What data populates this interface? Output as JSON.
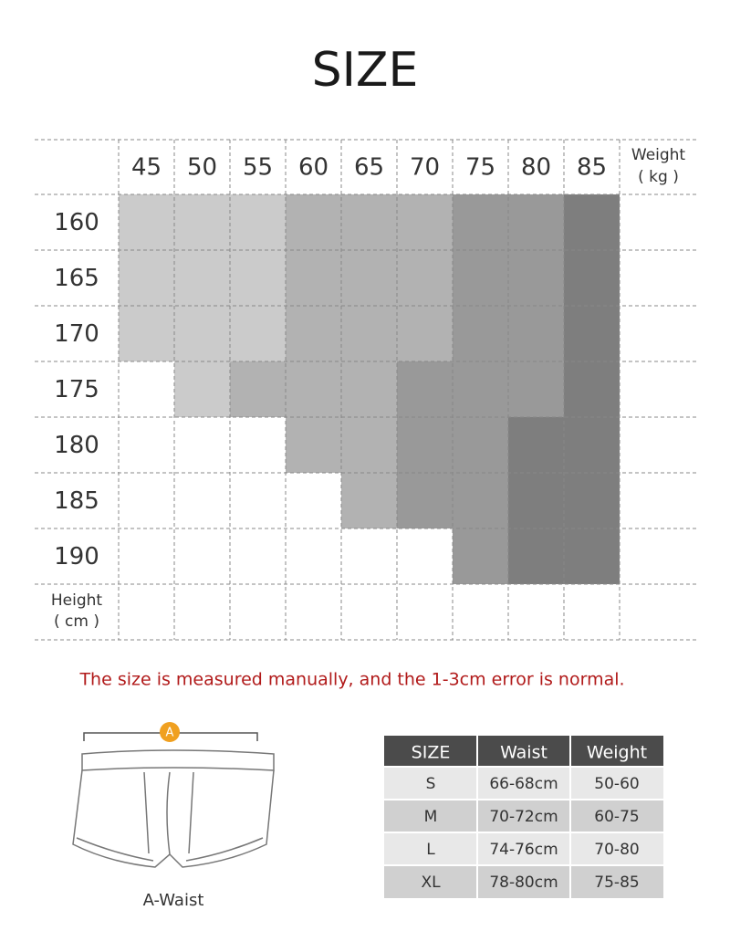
{
  "title": "SIZE",
  "grid": {
    "weights": [
      "45",
      "50",
      "55",
      "60",
      "65",
      "70",
      "75",
      "80",
      "85"
    ],
    "weight_label": [
      "Weight",
      "( kg )"
    ],
    "heights": [
      "160",
      "165",
      "170",
      "175",
      "180",
      "185",
      "190"
    ],
    "height_label": [
      "Height",
      "( cm )"
    ],
    "cell_colors": [
      [
        "#cbcbcb",
        "#cbcbcb",
        "#cbcbcb",
        "#b2b2b2",
        "#b2b2b2",
        "#b2b2b2",
        "#999999",
        "#999999",
        "#7e7e7e"
      ],
      [
        "#cbcbcb",
        "#cbcbcb",
        "#cbcbcb",
        "#b2b2b2",
        "#b2b2b2",
        "#b2b2b2",
        "#999999",
        "#999999",
        "#7e7e7e"
      ],
      [
        "#cbcbcb",
        "#cbcbcb",
        "#cbcbcb",
        "#b2b2b2",
        "#b2b2b2",
        "#b2b2b2",
        "#999999",
        "#999999",
        "#7e7e7e"
      ],
      [
        null,
        "#cbcbcb",
        "#b2b2b2",
        "#b2b2b2",
        "#b2b2b2",
        "#999999",
        "#999999",
        "#999999",
        "#7e7e7e"
      ],
      [
        null,
        null,
        null,
        "#b2b2b2",
        "#b2b2b2",
        "#999999",
        "#999999",
        "#7e7e7e",
        "#7e7e7e"
      ],
      [
        null,
        null,
        null,
        null,
        "#b2b2b2",
        "#999999",
        "#999999",
        "#7e7e7e",
        "#7e7e7e"
      ],
      [
        null,
        null,
        null,
        null,
        null,
        null,
        "#999999",
        "#7e7e7e",
        "#7e7e7e"
      ]
    ]
  },
  "note": "The size is measured manually, and the 1-3cm error is normal.",
  "diagram": {
    "marker": "A",
    "caption": "A-Waist"
  },
  "table": {
    "header": [
      "SIZE",
      "Waist",
      "Weight"
    ],
    "rows": [
      [
        "S",
        "66-68cm",
        "50-60"
      ],
      [
        "M",
        "70-72cm",
        "60-75"
      ],
      [
        "L",
        "74-76cm",
        "70-80"
      ],
      [
        "XL",
        "78-80cm",
        "75-85"
      ]
    ]
  }
}
